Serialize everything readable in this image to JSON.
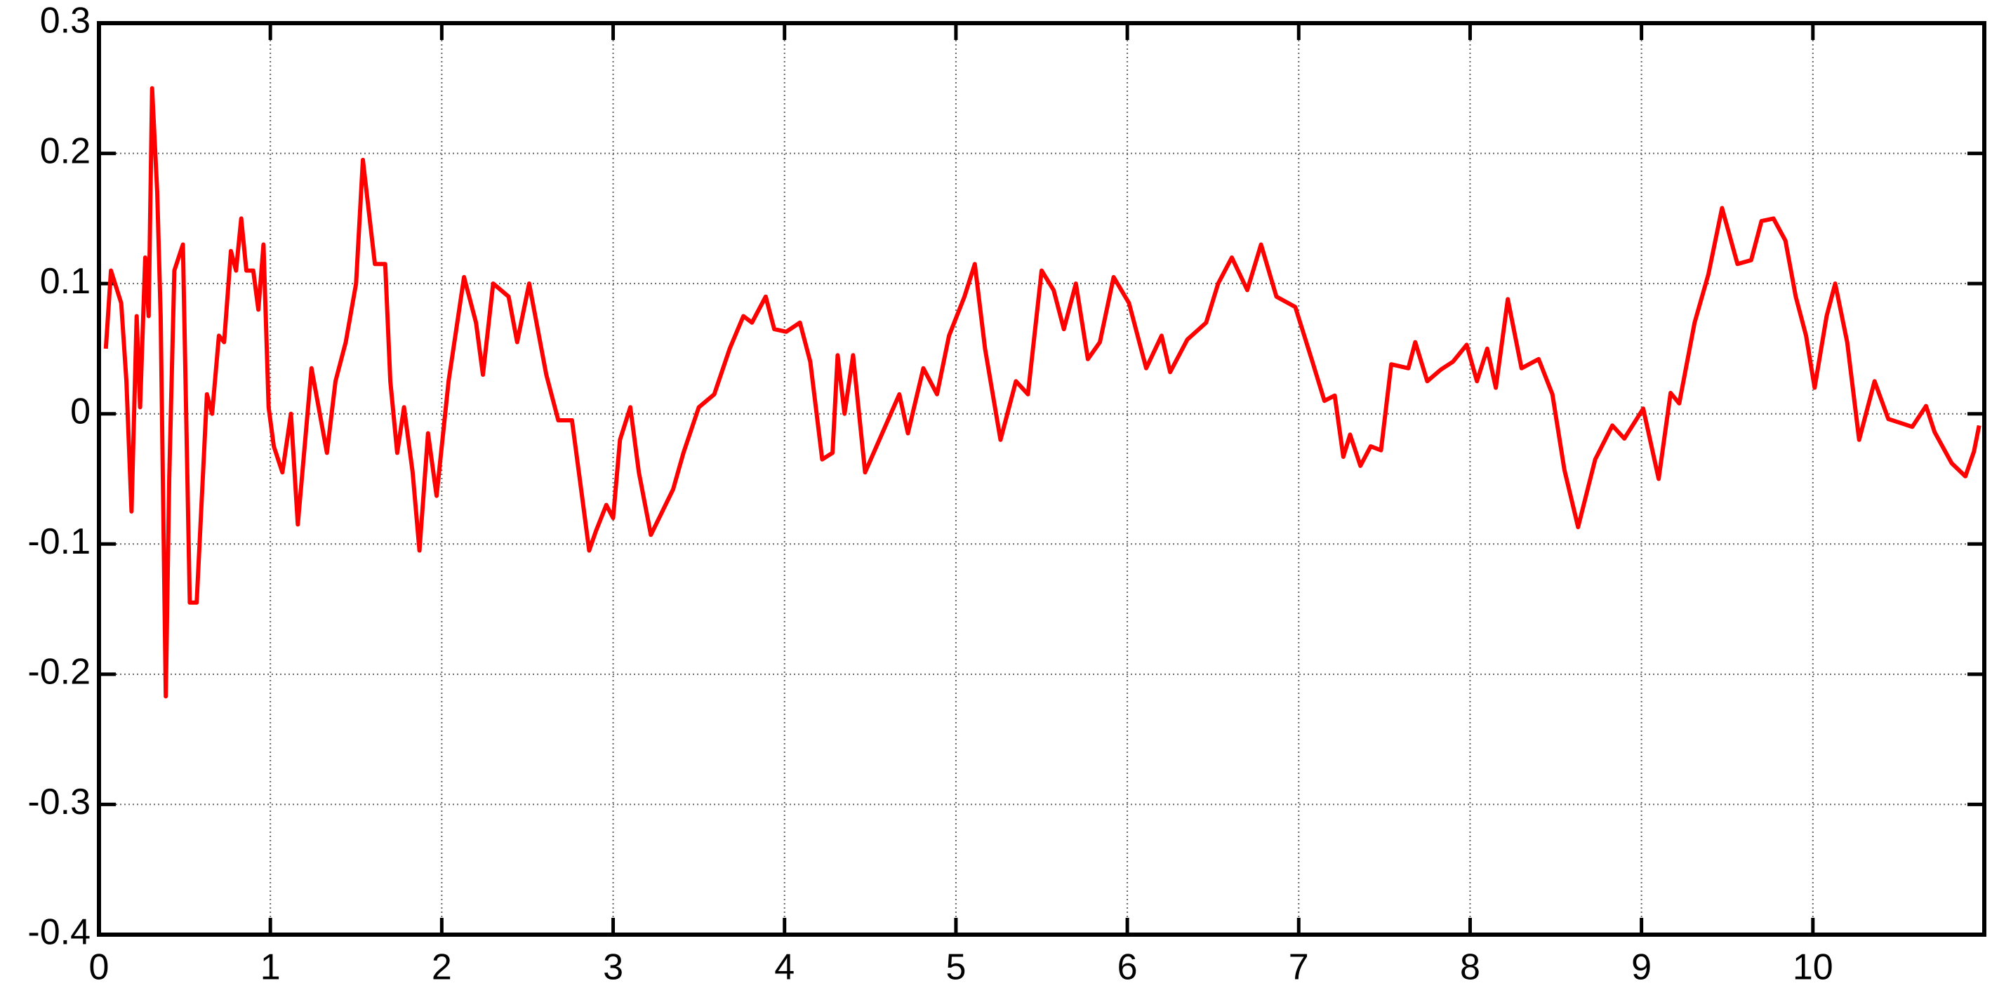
{
  "chart_data": {
    "type": "line",
    "color": "#ff0000",
    "xlim": [
      0,
      11
    ],
    "ylim": [
      -0.4,
      0.3
    ],
    "xticks": [
      0,
      1,
      2,
      3,
      4,
      5,
      6,
      7,
      8,
      9,
      10
    ],
    "yticks": [
      -0.4,
      -0.3,
      -0.2,
      -0.1,
      0,
      0.1,
      0.2,
      0.3
    ],
    "grid": true,
    "x": [
      0.04,
      0.07,
      0.13,
      0.16,
      0.19,
      0.22,
      0.24,
      0.27,
      0.29,
      0.31,
      0.34,
      0.36,
      0.39,
      0.41,
      0.44,
      0.49,
      0.53,
      0.57,
      0.63,
      0.66,
      0.7,
      0.73,
      0.77,
      0.8,
      0.83,
      0.86,
      0.9,
      0.93,
      0.96,
      0.99,
      1.02,
      1.07,
      1.12,
      1.16,
      1.24,
      1.33,
      1.38,
      1.44,
      1.5,
      1.54,
      1.61,
      1.67,
      1.7,
      1.74,
      1.78,
      1.83,
      1.87,
      1.92,
      1.97,
      2.04,
      2.13,
      2.2,
      2.24,
      2.3,
      2.39,
      2.44,
      2.51,
      2.61,
      2.68,
      2.76,
      2.81,
      2.86,
      2.9,
      2.96,
      3.0,
      3.04,
      3.1,
      3.15,
      3.22,
      3.35,
      3.41,
      3.5,
      3.59,
      3.68,
      3.76,
      3.81,
      3.89,
      3.94,
      4.01,
      4.09,
      4.15,
      4.22,
      4.28,
      4.31,
      4.35,
      4.4,
      4.47,
      4.57,
      4.67,
      4.72,
      4.81,
      4.89,
      4.96,
      5.05,
      5.11,
      5.17,
      5.26,
      5.35,
      5.42,
      5.5,
      5.57,
      5.63,
      5.7,
      5.77,
      5.84,
      5.92,
      6.01,
      6.11,
      6.2,
      6.25,
      6.35,
      6.46,
      6.53,
      6.61,
      6.7,
      6.78,
      6.87,
      6.98,
      7.08,
      7.15,
      7.21,
      7.26,
      7.3,
      7.36,
      7.42,
      7.48,
      7.54,
      7.64,
      7.68,
      7.75,
      7.83,
      7.9,
      7.98,
      8.04,
      8.1,
      8.15,
      8.22,
      8.3,
      8.4,
      8.48,
      8.55,
      8.63,
      8.73,
      8.83,
      8.9,
      9.01,
      9.1,
      9.17,
      9.22,
      9.31,
      9.39,
      9.47,
      9.56,
      9.64,
      9.7,
      9.77,
      9.84,
      9.9,
      9.96,
      10.01,
      10.08,
      10.13,
      10.2,
      10.27,
      10.36,
      10.44,
      10.51,
      10.58,
      10.66,
      10.71,
      10.81,
      10.89,
      10.94,
      10.97
    ],
    "values": [
      0.05,
      0.11,
      0.085,
      0.025,
      -0.075,
      0.075,
      0.005,
      0.12,
      0.075,
      0.25,
      0.17,
      0.075,
      -0.217,
      -0.05,
      0.11,
      0.13,
      -0.145,
      -0.145,
      0.015,
      0,
      0.06,
      0.055,
      0.125,
      0.11,
      0.15,
      0.11,
      0.11,
      0.08,
      0.13,
      0.005,
      -0.025,
      -0.045,
      0,
      -0.085,
      0.035,
      -0.03,
      0.025,
      0.055,
      0.1,
      0.195,
      0.115,
      0.115,
      0.025,
      -0.03,
      0.005,
      -0.045,
      -0.105,
      -0.015,
      -0.063,
      0.025,
      0.105,
      0.07,
      0.03,
      0.1,
      0.09,
      0.055,
      0.1,
      0.03,
      -0.005,
      -0.005,
      -0.055,
      -0.105,
      -0.09,
      -0.07,
      -0.08,
      -0.02,
      0.005,
      -0.045,
      -0.093,
      -0.058,
      -0.03,
      0.005,
      0.015,
      0.05,
      0.075,
      0.07,
      0.09,
      0.065,
      0.063,
      0.07,
      0.04,
      -0.035,
      -0.03,
      0.045,
      0,
      0.045,
      -0.045,
      -0.015,
      0.015,
      -0.015,
      0.035,
      0.015,
      0.06,
      0.09,
      0.115,
      0.05,
      -0.02,
      0.025,
      0.015,
      0.11,
      0.095,
      0.065,
      0.1,
      0.042,
      0.055,
      0.105,
      0.085,
      0.035,
      0.06,
      0.032,
      0.057,
      0.07,
      0.1,
      0.12,
      0.095,
      0.13,
      0.09,
      0.082,
      0.04,
      0.01,
      0.014,
      -0.033,
      -0.016,
      -0.04,
      -0.025,
      -0.028,
      0.038,
      0.035,
      0.055,
      0.025,
      0.034,
      0.04,
      0.053,
      0.025,
      0.05,
      0.02,
      0.088,
      0.035,
      0.042,
      0.015,
      -0.043,
      -0.087,
      -0.035,
      -0.009,
      -0.019,
      0.004,
      -0.05,
      0.016,
      0.008,
      0.07,
      0.107,
      0.158,
      0.115,
      0.118,
      0.148,
      0.15,
      0.133,
      0.09,
      0.06,
      0.02,
      0.075,
      0.1,
      0.055,
      -0.02,
      0.025,
      -0.004,
      -0.007,
      -0.01,
      0.006,
      -0.014,
      -0.038,
      -0.048,
      -0.029,
      -0.009
    ]
  }
}
